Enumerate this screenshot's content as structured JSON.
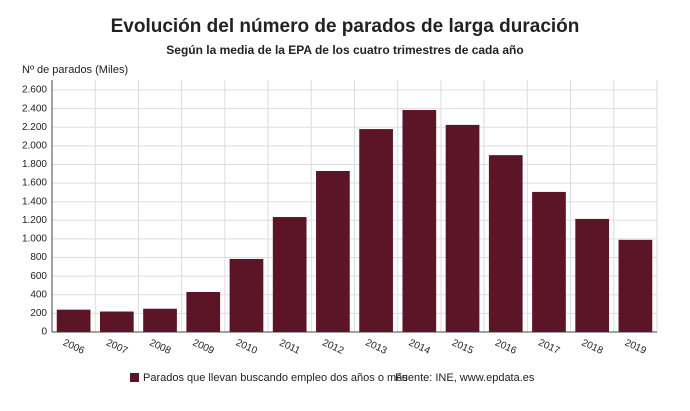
{
  "chart_data": {
    "type": "bar",
    "title": "Evolución del número de parados de larga duración",
    "subtitle": "Según la media de la EPA de los cuatro trimestres de cada año",
    "y_label": "Nº de parados (Miles)",
    "categories": [
      "2006",
      "2007",
      "2008",
      "2009",
      "2010",
      "2011",
      "2012",
      "2013",
      "2014",
      "2015",
      "2016",
      "2017",
      "2018",
      "2019"
    ],
    "series": [
      {
        "name": "Parados que llevan buscando empleo dos años o más",
        "color": "#5c1526",
        "values": [
          240,
          220,
          250,
          430,
          785,
          1235,
          1730,
          2180,
          2385,
          2225,
          1900,
          1505,
          1215,
          990
        ]
      }
    ],
    "source": "Fuente: INE, www.epdata.es",
    "ylim": [
      0,
      2600
    ],
    "yticks": [
      0,
      200,
      400,
      600,
      800,
      {
        "value": 1000,
        "label": "1.000"
      },
      {
        "value": 1200,
        "label": "1.200"
      },
      {
        "value": 1400,
        "label": "1.400"
      },
      {
        "value": 1600,
        "label": "1.600"
      },
      {
        "value": 1800,
        "label": "1.800"
      },
      {
        "value": 2000,
        "label": "2.000"
      },
      {
        "value": 2200,
        "label": "2.200"
      },
      {
        "value": 2400,
        "label": "2.400"
      },
      {
        "value": 2600,
        "label": "2.600"
      }
    ],
    "grid": true
  }
}
